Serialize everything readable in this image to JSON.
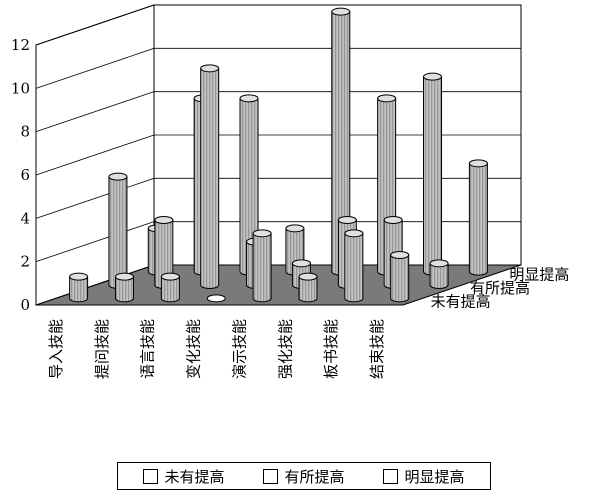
{
  "chart_data": {
    "type": "bar",
    "categories": [
      "导入技能",
      "提问技能",
      "语言技能",
      "变化技能",
      "演示技能",
      "强化技能",
      "板书技能",
      "结束技能"
    ],
    "series": [
      {
        "name": "未有提高",
        "values": [
          1,
          1,
          1,
          0,
          3,
          1,
          3,
          2
        ]
      },
      {
        "name": "有所提高",
        "values": [
          5,
          3,
          10,
          2,
          1,
          3,
          3,
          1
        ]
      },
      {
        "name": "明显提高",
        "values": [
          2,
          8,
          8,
          2,
          12,
          8,
          9,
          5
        ]
      }
    ],
    "ylim": [
      0,
      12
    ],
    "yticks": [
      "0",
      "2",
      "4",
      "6",
      "8",
      "10",
      "12"
    ],
    "legend": "bottom",
    "grid": true,
    "colors": {
      "wall": "#ffffff",
      "floor": "#7a7a7a",
      "cylinder_light": "#f2f2f2",
      "cylinder_dark": "#5a5a5a",
      "line": "#000000"
    }
  }
}
